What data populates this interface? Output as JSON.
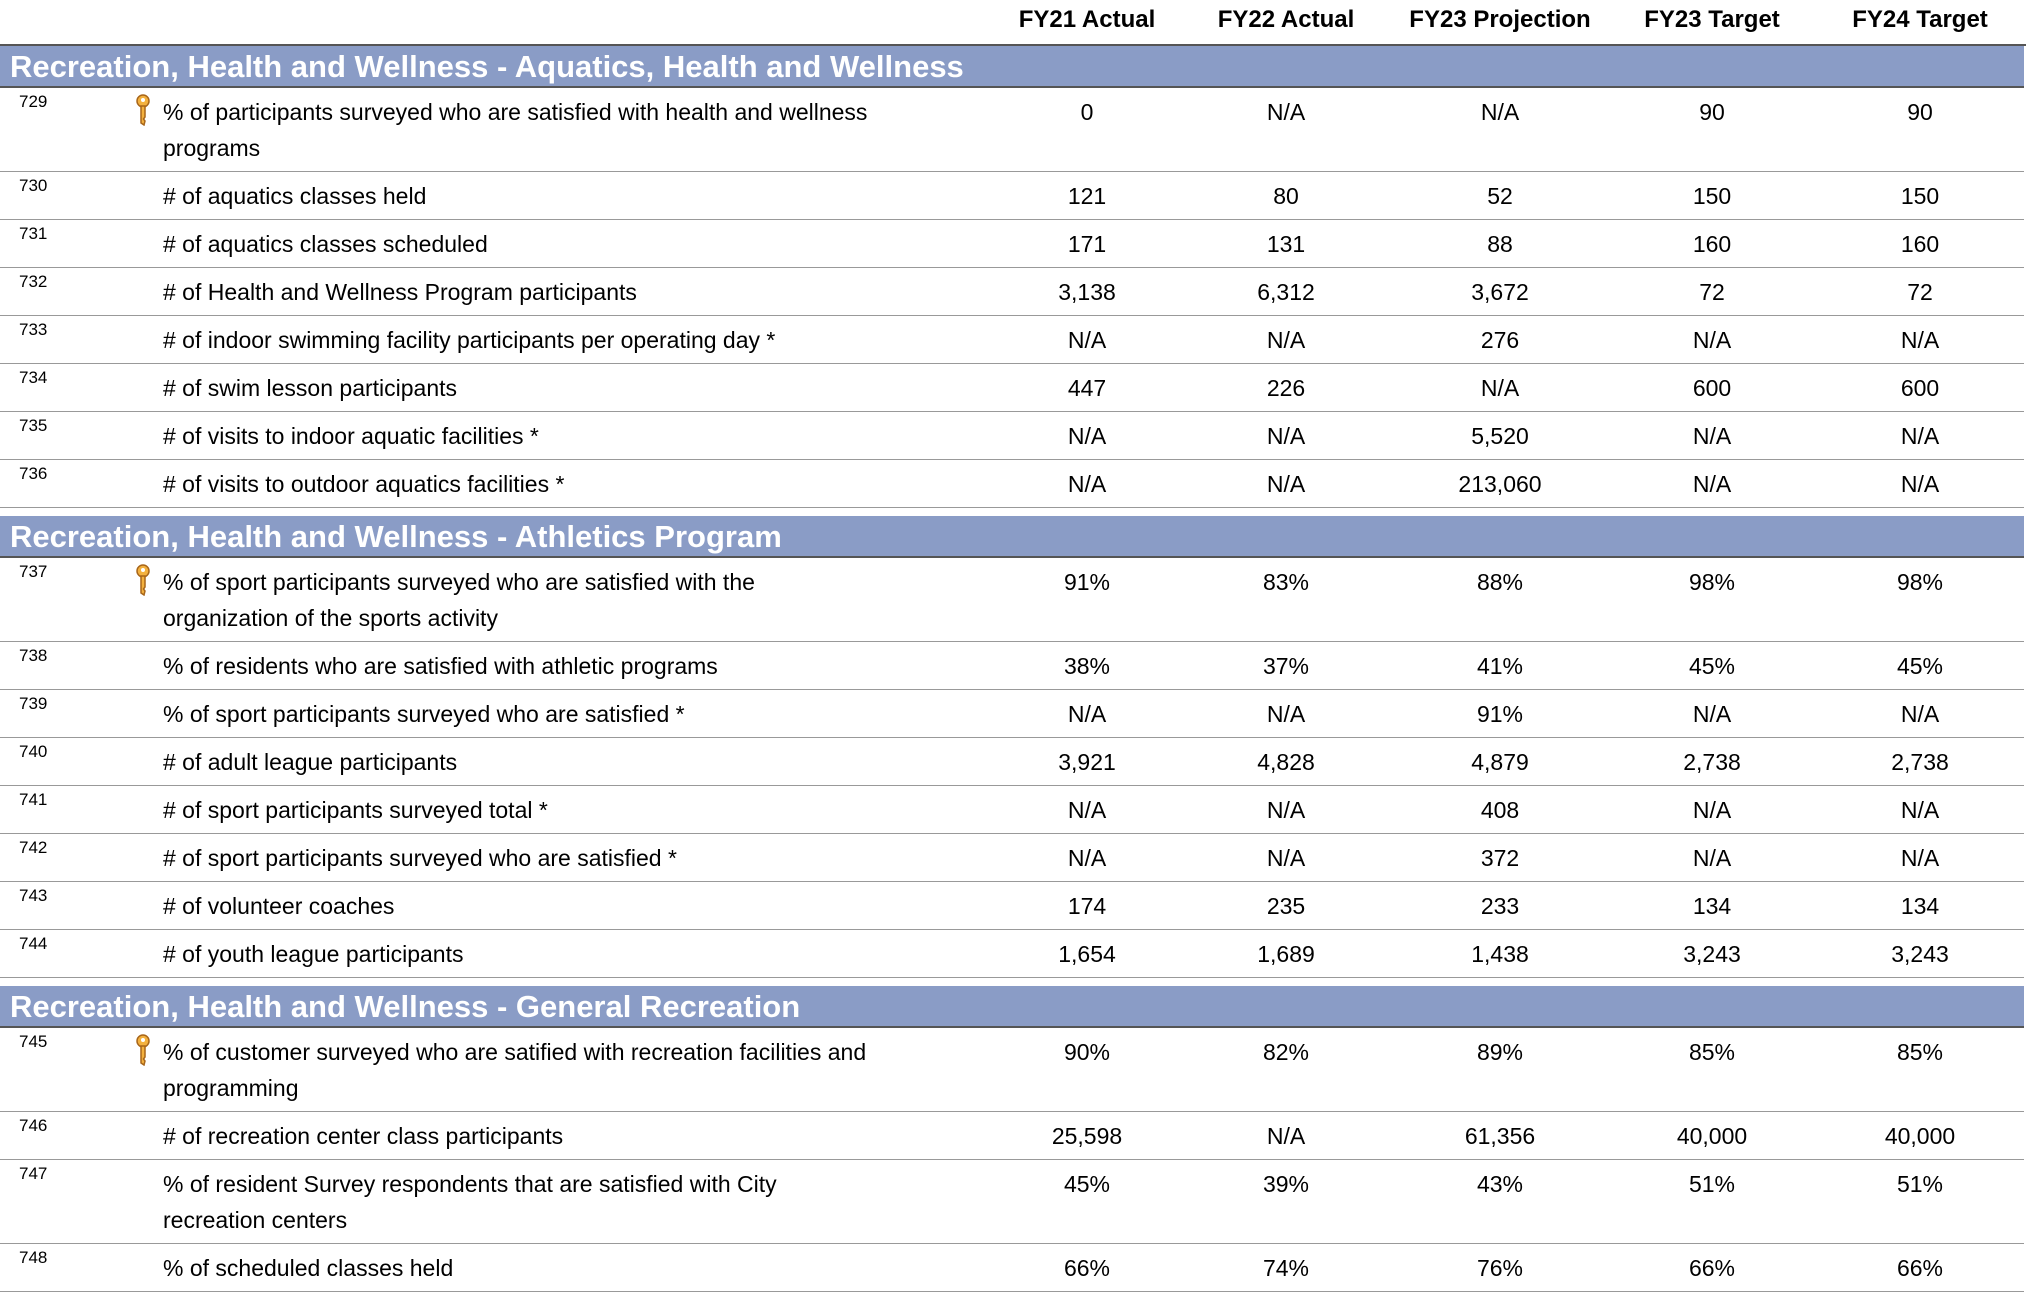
{
  "columns": [
    "FY21 Actual",
    "FY22 Actual",
    "FY23 Projection",
    "FY23 Target",
    "FY24 Target"
  ],
  "sections": [
    {
      "title": "Recreation, Health and Wellness - Aquatics, Health and Wellness",
      "rows": [
        {
          "id": "729",
          "key": true,
          "description": "% of participants surveyed who are satisfied with health and wellness programs",
          "values": [
            "0",
            "N/A",
            "N/A",
            "90",
            "90"
          ]
        },
        {
          "id": "730",
          "description": "# of aquatics classes held",
          "values": [
            "121",
            "80",
            "52",
            "150",
            "150"
          ]
        },
        {
          "id": "731",
          "description": "# of aquatics classes scheduled",
          "values": [
            "171",
            "131",
            "88",
            "160",
            "160"
          ]
        },
        {
          "id": "732",
          "description": "# of Health and Wellness Program participants",
          "values": [
            "3,138",
            "6,312",
            "3,672",
            "72",
            "72"
          ]
        },
        {
          "id": "733",
          "description": "# of indoor swimming facility participants per operating day *",
          "values": [
            "N/A",
            "N/A",
            "276",
            "N/A",
            "N/A"
          ]
        },
        {
          "id": "734",
          "description": "# of swim lesson participants",
          "values": [
            "447",
            "226",
            "N/A",
            "600",
            "600"
          ]
        },
        {
          "id": "735",
          "description": "# of visits to indoor aquatic facilities *",
          "values": [
            "N/A",
            "N/A",
            "5,520",
            "N/A",
            "N/A"
          ]
        },
        {
          "id": "736",
          "description": "# of visits to outdoor aquatics facilities *",
          "values": [
            "N/A",
            "N/A",
            "213,060",
            "N/A",
            "N/A"
          ]
        }
      ]
    },
    {
      "title": "Recreation, Health and Wellness - Athletics Program",
      "rows": [
        {
          "id": "737",
          "key": true,
          "description": "% of sport participants surveyed who are satisfied with the organization of the sports activity",
          "values": [
            "91%",
            "83%",
            "88%",
            "98%",
            "98%"
          ]
        },
        {
          "id": "738",
          "description": "% of residents who are satisfied with athletic programs",
          "values": [
            "38%",
            "37%",
            "41%",
            "45%",
            "45%"
          ]
        },
        {
          "id": "739",
          "description": "% of sport participants surveyed who are satisfied *",
          "values": [
            "N/A",
            "N/A",
            "91%",
            "N/A",
            "N/A"
          ]
        },
        {
          "id": "740",
          "description": "# of adult league participants",
          "values": [
            "3,921",
            "4,828",
            "4,879",
            "2,738",
            "2,738"
          ]
        },
        {
          "id": "741",
          "description": "# of sport participants surveyed total *",
          "values": [
            "N/A",
            "N/A",
            "408",
            "N/A",
            "N/A"
          ]
        },
        {
          "id": "742",
          "description": "# of sport participants surveyed who are satisfied *",
          "values": [
            "N/A",
            "N/A",
            "372",
            "N/A",
            "N/A"
          ]
        },
        {
          "id": "743",
          "description": "# of volunteer coaches",
          "values": [
            "174",
            "235",
            "233",
            "134",
            "134"
          ]
        },
        {
          "id": "744",
          "description": "# of youth league participants",
          "values": [
            "1,654",
            "1,689",
            "1,438",
            "3,243",
            "3,243"
          ]
        }
      ]
    },
    {
      "title": "Recreation, Health and Wellness - General Recreation",
      "rows": [
        {
          "id": "745",
          "key": true,
          "description": "% of customer surveyed who are satified with recreation facilities and programming",
          "values": [
            "90%",
            "82%",
            "89%",
            "85%",
            "85%"
          ]
        },
        {
          "id": "746",
          "description": "# of recreation center class participants",
          "values": [
            "25,598",
            "N/A",
            "61,356",
            "40,000",
            "40,000"
          ]
        },
        {
          "id": "747",
          "description": "% of resident Survey respondents that are satisfied with City recreation centers",
          "values": [
            "45%",
            "39%",
            "43%",
            "51%",
            "51%"
          ]
        },
        {
          "id": "748",
          "description": "% of scheduled classes held",
          "values": [
            "66%",
            "74%",
            "76%",
            "66%",
            "66%"
          ]
        }
      ]
    }
  ]
}
